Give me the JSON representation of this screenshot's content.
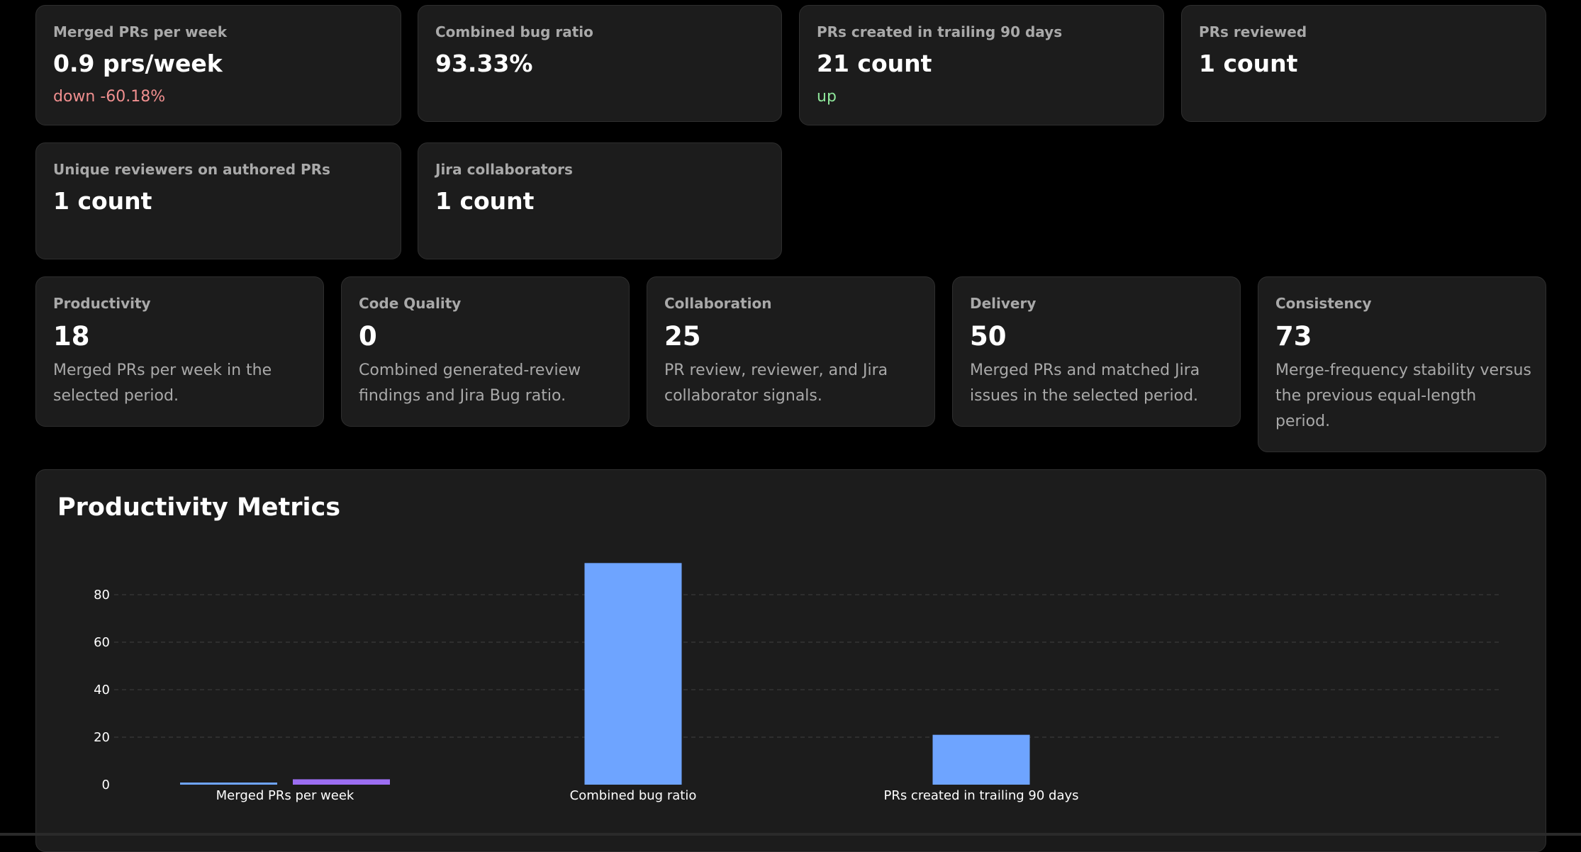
{
  "stats": [
    {
      "label": "Merged PRs per week",
      "value": "0.9 prs/week",
      "trend": "down -60.18%",
      "trend_dir": "down"
    },
    {
      "label": "Combined bug ratio",
      "value": "93.33%",
      "trend": "",
      "trend_dir": ""
    },
    {
      "label": "PRs created in trailing 90 days",
      "value": "21 count",
      "trend": "up",
      "trend_dir": "up"
    },
    {
      "label": "PRs reviewed",
      "value": "1 count",
      "trend": "",
      "trend_dir": ""
    },
    {
      "label": "Unique reviewers on authored PRs",
      "value": "1 count",
      "trend": "",
      "trend_dir": ""
    },
    {
      "label": "Jira collaborators",
      "value": "1 count",
      "trend": "",
      "trend_dir": ""
    }
  ],
  "scores": [
    {
      "label": "Productivity",
      "value": "18",
      "description": "Merged PRs per week in the selected period."
    },
    {
      "label": "Code Quality",
      "value": "0",
      "description": "Combined generated-review findings and Jira Bug ratio."
    },
    {
      "label": "Collaboration",
      "value": "25",
      "description": "PR review, reviewer, and Jira collaborator signals."
    },
    {
      "label": "Delivery",
      "value": "50",
      "description": "Merged PRs and matched Jira issues in the selected period."
    },
    {
      "label": "Consistency",
      "value": "73",
      "description": "Merge-frequency stability versus the previous equal-length period."
    }
  ],
  "chart_section": {
    "title": "Productivity Metrics"
  },
  "chart_data": {
    "type": "bar",
    "title": "Productivity Metrics",
    "categories": [
      "Merged PRs per week",
      "Combined bug ratio",
      "PRs created in trailing 90 days"
    ],
    "series": [
      {
        "color": "#6ea4ff",
        "values": [
          0.9,
          93.33,
          21
        ]
      },
      {
        "color": "#9c6ef2",
        "values": [
          2.26,
          null,
          null
        ]
      }
    ],
    "ylim": [
      0,
      100
    ],
    "yticks": [
      0,
      20,
      40,
      60,
      80
    ],
    "grid": true,
    "xlabel": "",
    "ylabel": ""
  }
}
